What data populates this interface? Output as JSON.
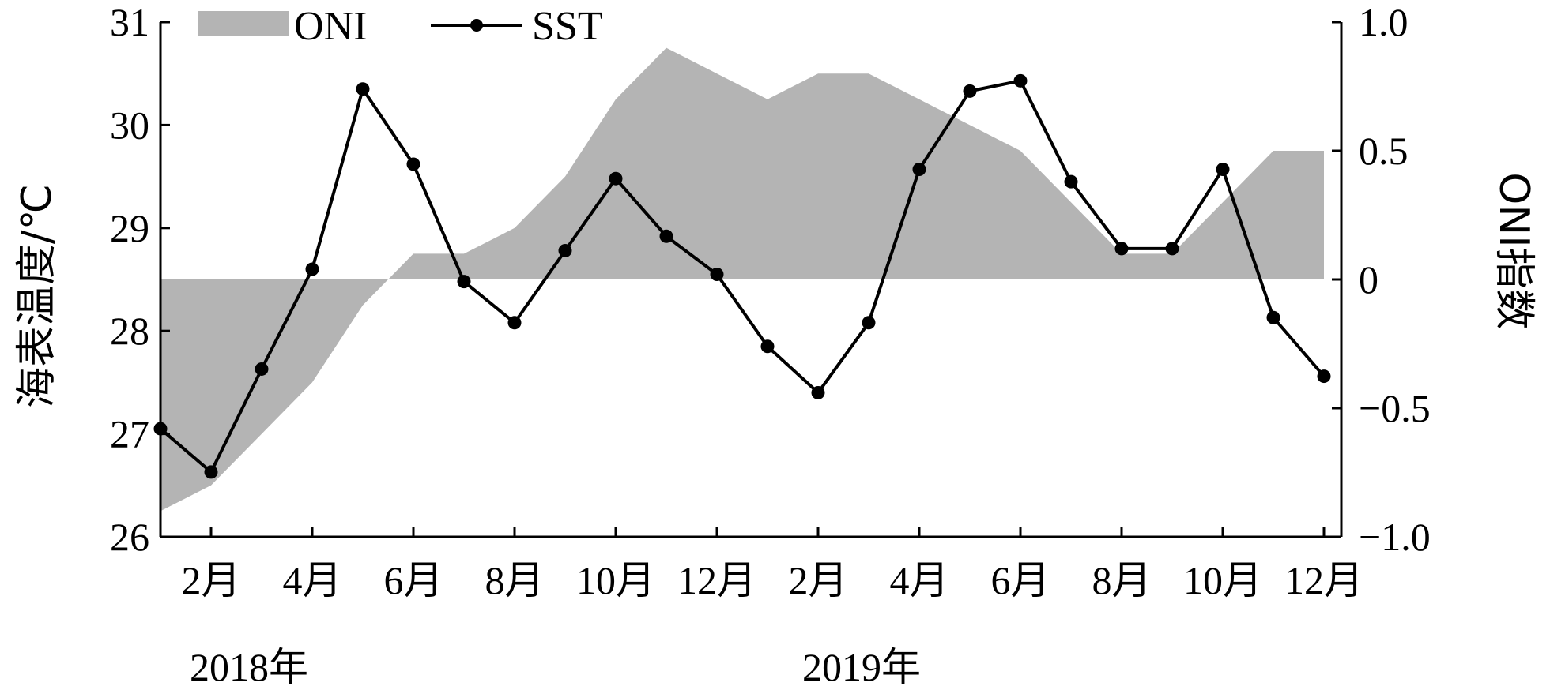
{
  "chart_data": {
    "type": "line",
    "months": [
      "1月",
      "2月",
      "3月",
      "4月",
      "5月",
      "6月",
      "7月",
      "8月",
      "9月",
      "10月",
      "11月",
      "12月",
      "1月",
      "2月",
      "3月",
      "4月",
      "5月",
      "6月",
      "7月",
      "8月",
      "9月",
      "10月",
      "11月",
      "12月"
    ],
    "x_tick_labels": [
      "2月",
      "4月",
      "6月",
      "8月",
      "10月",
      "12月",
      "2月",
      "4月",
      "6月",
      "8月",
      "10月",
      "12月"
    ],
    "year_labels": [
      "2018年",
      "2019年"
    ],
    "series": [
      {
        "name": "ONI",
        "kind": "area",
        "axis": "right",
        "color": "#b4b4b4",
        "values": [
          -0.9,
          -0.8,
          -0.6,
          -0.4,
          -0.1,
          0.1,
          0.1,
          0.2,
          0.4,
          0.7,
          0.9,
          0.8,
          0.7,
          0.8,
          0.8,
          0.7,
          0.6,
          0.5,
          0.3,
          0.1,
          0.1,
          0.3,
          0.5,
          0.5
        ]
      },
      {
        "name": "SST",
        "kind": "line",
        "axis": "left",
        "color": "#000000",
        "values": [
          27.05,
          26.63,
          27.63,
          28.6,
          30.35,
          29.62,
          28.48,
          28.08,
          28.78,
          29.48,
          28.92,
          28.55,
          27.85,
          27.4,
          28.08,
          29.57,
          30.33,
          30.43,
          29.45,
          28.8,
          28.8,
          29.57,
          28.13,
          27.56
        ]
      }
    ],
    "ylabel": "海表温度/℃",
    "y2label": "ONI指数",
    "ylim": [
      26,
      31
    ],
    "y_ticks": [
      "26",
      "27",
      "28",
      "29",
      "30",
      "31"
    ],
    "y2lim": [
      -1.0,
      1.0
    ],
    "y2_ticks": [
      "−1.0",
      "−0.5",
      "0",
      "0.5",
      "1.0"
    ],
    "legend": {
      "placement": "top-left",
      "items": [
        "ONI",
        "SST"
      ]
    },
    "grid": false
  }
}
